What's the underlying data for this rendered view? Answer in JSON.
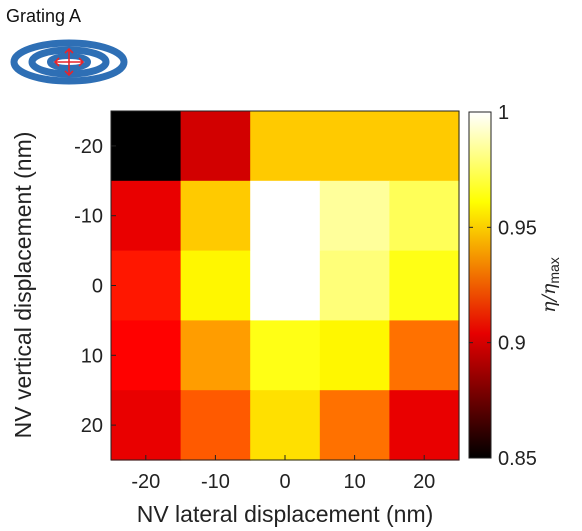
{
  "inset": {
    "title": "Grating A",
    "ring_color": "#2e6fb5",
    "marker_color": "#e8242a"
  },
  "chart_data": {
    "type": "heatmap",
    "xlabel": "NV lateral displacement (nm)",
    "ylabel": "NV vertical displacement (nm)",
    "x": [
      -20,
      -10,
      0,
      10,
      20
    ],
    "y": [
      -20,
      -10,
      0,
      10,
      20
    ],
    "x_tick_labels": [
      "-20",
      "-10",
      "0",
      "10",
      "20"
    ],
    "y_tick_labels": [
      "-20",
      "-10",
      "0",
      "10",
      "20"
    ],
    "values": [
      [
        0.85,
        0.895,
        0.95,
        0.95,
        0.95
      ],
      [
        0.9,
        0.95,
        1.0,
        0.985,
        0.975
      ],
      [
        0.91,
        0.96,
        1.0,
        0.98,
        0.965
      ],
      [
        0.905,
        0.94,
        0.965,
        0.96,
        0.93
      ],
      [
        0.9,
        0.925,
        0.955,
        0.93,
        0.9
      ]
    ],
    "colormap": "hot",
    "clim": [
      0.85,
      1.0
    ],
    "colorbar": {
      "label_main": "η/η",
      "label_sub": "max",
      "ticks": [
        0.85,
        0.9,
        0.95,
        1.0
      ],
      "tick_labels": [
        "0.85",
        "0.9",
        "0.95",
        "1"
      ]
    }
  }
}
